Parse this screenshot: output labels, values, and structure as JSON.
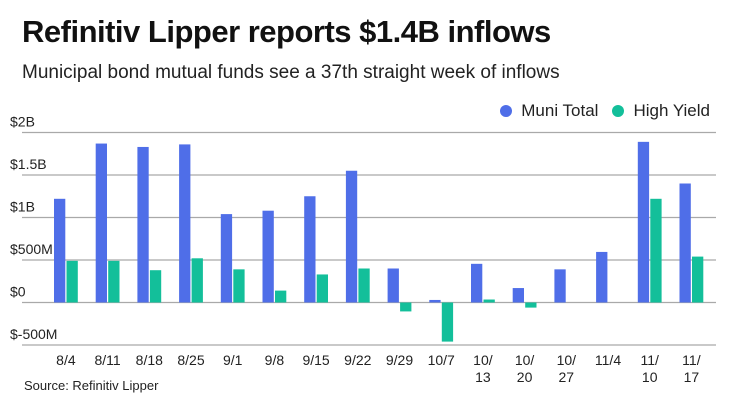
{
  "header": {
    "title": "Refinitiv Lipper reports $1.4B inflows",
    "subtitle": "Municipal bond mutual funds see a 37th straight week of inflows"
  },
  "footer": {
    "source": "Source: Refinitiv Lipper"
  },
  "chart_data": {
    "type": "bar",
    "title": "Refinitiv Lipper reports $1.4B inflows",
    "subtitle": "Municipal bond mutual funds see a 37th straight week of inflows",
    "xlabel": "",
    "ylabel": "",
    "ylim": [
      -500,
      2000
    ],
    "unit": "millions USD",
    "grid": true,
    "legend_position": "top-right",
    "yticks": [
      {
        "value": 2000,
        "label": "$2B"
      },
      {
        "value": 1500,
        "label": "$1.5B"
      },
      {
        "value": 1000,
        "label": "$1B"
      },
      {
        "value": 500,
        "label": "$500M"
      },
      {
        "value": 0,
        "label": "$0"
      },
      {
        "value": -500,
        "label": "$-500M"
      }
    ],
    "categories": [
      "8/4",
      "8/11",
      "8/18",
      "8/25",
      "9/1",
      "9/8",
      "9/15",
      "9/22",
      "9/29",
      "10/7",
      "10/13",
      "10/20",
      "10/27",
      "11/4",
      "11/10",
      "11/17"
    ],
    "category_labels": [
      [
        "8/4"
      ],
      [
        "8/11"
      ],
      [
        "8/18"
      ],
      [
        "8/25"
      ],
      [
        "9/1"
      ],
      [
        "9/8"
      ],
      [
        "9/15"
      ],
      [
        "9/22"
      ],
      [
        "9/29"
      ],
      [
        "10/7"
      ],
      [
        "10/",
        "13"
      ],
      [
        "10/",
        "20"
      ],
      [
        "10/",
        "27"
      ],
      [
        "11/4"
      ],
      [
        "11/",
        "10"
      ],
      [
        "11/",
        "17"
      ]
    ],
    "series": [
      {
        "name": "Muni Total",
        "color": "#4f6ee8",
        "values": [
          1220,
          1870,
          1830,
          1860,
          1040,
          1080,
          1250,
          1550,
          400,
          30,
          455,
          170,
          390,
          595,
          1890,
          1400
        ]
      },
      {
        "name": "High Yield",
        "color": "#13bf9a",
        "values": [
          490,
          490,
          380,
          520,
          390,
          140,
          330,
          400,
          -105,
          -460,
          35,
          -60,
          0,
          0,
          1220,
          540
        ]
      }
    ]
  }
}
